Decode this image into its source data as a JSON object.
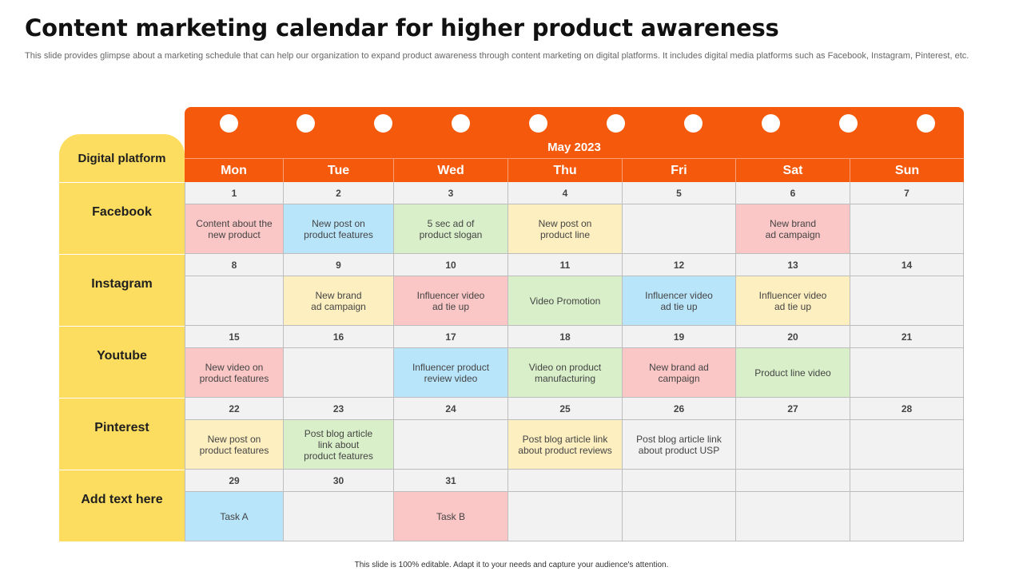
{
  "title": "Content marketing calendar for higher product awareness",
  "subtitle": "This slide provides glimpse about a marketing schedule that can help our organization to expand product awareness through content marketing on digital platforms. It includes digital media platforms such as Facebook, Instagram, Pinterest, etc.",
  "footer": "This slide is 100% editable. Adapt it to your needs and capture your audience's attention.",
  "calendar": {
    "month": "May 2023",
    "platform_header": "Digital platform",
    "days": [
      "Mon",
      "Tue",
      "Wed",
      "Thu",
      "Fri",
      "Sat",
      "Sun"
    ],
    "colors": {
      "header": "#f55a0c",
      "platform": "#fcdd5f",
      "pink": "#fbc6c6",
      "blue": "#b9e5fa",
      "green": "#d9efc9",
      "yellow": "#fdefc0",
      "empty": "#f2f2f2"
    },
    "weeks": [
      {
        "platform": "Facebook",
        "numbers": [
          "1",
          "2",
          "3",
          "4",
          "5",
          "6",
          "7"
        ],
        "events": [
          {
            "text": "Content about the\nnew product",
            "color": "pink"
          },
          {
            "text": "New post on\nproduct features",
            "color": "blue"
          },
          {
            "text": "5 sec ad of\nproduct slogan",
            "color": "green"
          },
          {
            "text": "New post on\nproduct line",
            "color": "yellow"
          },
          {
            "text": "",
            "color": ""
          },
          {
            "text": "New brand\nad campaign",
            "color": "pink"
          },
          {
            "text": "",
            "color": ""
          }
        ]
      },
      {
        "platform": "Instagram",
        "numbers": [
          "8",
          "9",
          "10",
          "11",
          "12",
          "13",
          "14"
        ],
        "events": [
          {
            "text": "",
            "color": ""
          },
          {
            "text": "New brand\nad campaign",
            "color": "yellow"
          },
          {
            "text": "Influencer video\nad tie up",
            "color": "pink"
          },
          {
            "text": "Video Promotion",
            "color": "green"
          },
          {
            "text": "Influencer video\nad tie up",
            "color": "blue"
          },
          {
            "text": "Influencer video\nad tie up",
            "color": "yellow"
          },
          {
            "text": "",
            "color": ""
          }
        ]
      },
      {
        "platform": "Youtube",
        "numbers": [
          "15",
          "16",
          "17",
          "18",
          "19",
          "20",
          "21"
        ],
        "events": [
          {
            "text": "New video on\nproduct features",
            "color": "pink"
          },
          {
            "text": "",
            "color": ""
          },
          {
            "text": "Influencer product\nreview video",
            "color": "blue"
          },
          {
            "text": "Video on product\nmanufacturing",
            "color": "green"
          },
          {
            "text": "New brand ad\ncampaign",
            "color": "pink"
          },
          {
            "text": "Product line video",
            "color": "green"
          },
          {
            "text": "",
            "color": ""
          }
        ]
      },
      {
        "platform": "Pinterest",
        "numbers": [
          "22",
          "23",
          "24",
          "25",
          "26",
          "27",
          "28"
        ],
        "events": [
          {
            "text": "New post on\nproduct features",
            "color": "yellow"
          },
          {
            "text": "Post blog article\nlink about\nproduct features",
            "color": "green"
          },
          {
            "text": "",
            "color": ""
          },
          {
            "text": "Post blog article link\nabout product reviews",
            "color": "yellow"
          },
          {
            "text": "Post blog article link\nabout product USP",
            "color": ""
          },
          {
            "text": "",
            "color": ""
          },
          {
            "text": "",
            "color": ""
          }
        ]
      },
      {
        "platform": "Add text here",
        "numbers": [
          "29",
          "30",
          "31",
          "",
          "",
          "",
          ""
        ],
        "events": [
          {
            "text": "Task A",
            "color": "blue"
          },
          {
            "text": "",
            "color": ""
          },
          {
            "text": "Task B",
            "color": "pink"
          },
          {
            "text": "",
            "color": ""
          },
          {
            "text": "",
            "color": ""
          },
          {
            "text": "",
            "color": ""
          },
          {
            "text": "",
            "color": ""
          }
        ]
      }
    ]
  }
}
